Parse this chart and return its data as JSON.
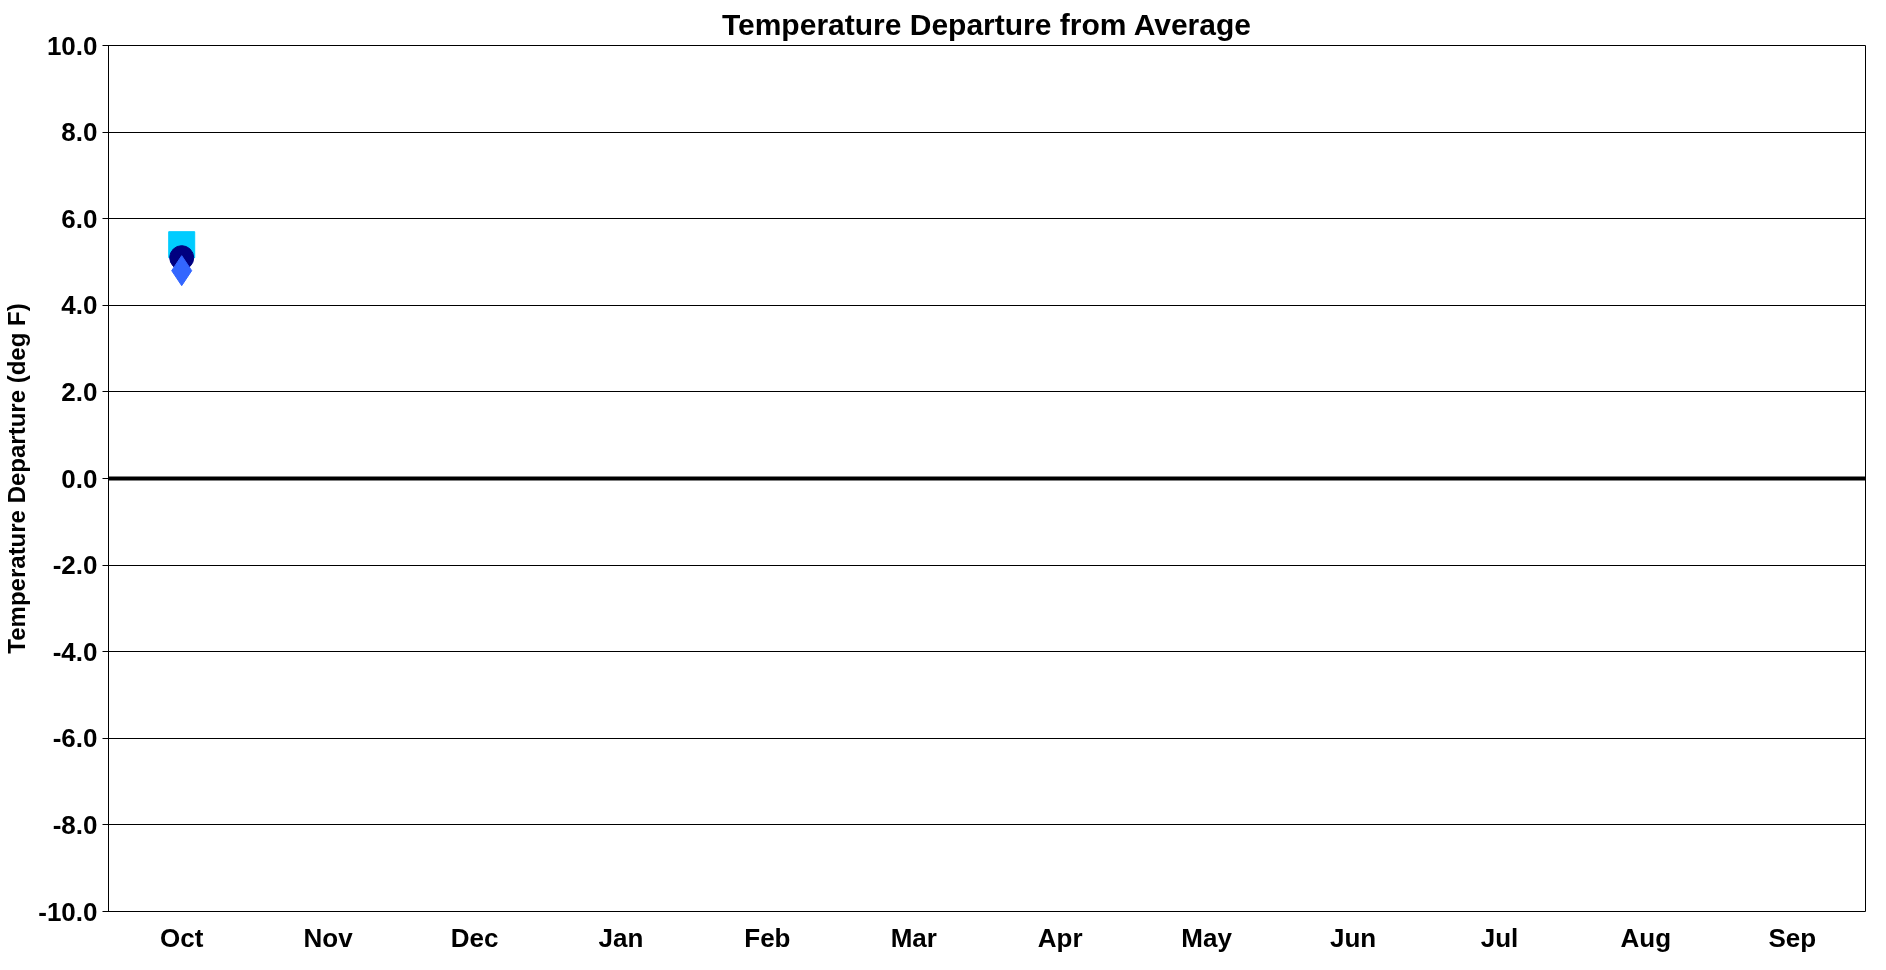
{
  "chart_data": {
    "type": "scatter",
    "title": "Temperature Departure from Average",
    "ylabel": "Temperature Departure (deg F)",
    "categories": [
      "Oct",
      "Nov",
      "Dec",
      "Jan",
      "Feb",
      "Mar",
      "Apr",
      "May",
      "Jun",
      "Jul",
      "Aug",
      "Sep"
    ],
    "series": [
      {
        "color": "#00ccff",
        "marker": "square",
        "values": [
          5.4,
          null,
          null,
          null,
          null,
          null,
          null,
          null,
          null,
          null,
          null,
          null
        ]
      },
      {
        "color": "#000080",
        "marker": "circle",
        "values": [
          5.1,
          null,
          null,
          null,
          null,
          null,
          null,
          null,
          null,
          null,
          null,
          null
        ]
      },
      {
        "color": "#3366ff",
        "marker": "diamond",
        "values": [
          4.8,
          null,
          null,
          null,
          null,
          null,
          null,
          null,
          null,
          null,
          null,
          null
        ]
      }
    ],
    "ylim": [
      -10.0,
      10.0
    ],
    "yticks": [
      {
        "value": -10,
        "label": "-10.0"
      },
      {
        "value": -8,
        "label": "-8.0"
      },
      {
        "value": -6,
        "label": "-6.0"
      },
      {
        "value": -4,
        "label": "-4.0"
      },
      {
        "value": -2,
        "label": "-2.0"
      },
      {
        "value": 0,
        "label": "0.0"
      },
      {
        "value": 2,
        "label": "2.0"
      },
      {
        "value": 4,
        "label": "4.0"
      },
      {
        "value": 6,
        "label": "6.0"
      },
      {
        "value": 8,
        "label": "8.0"
      },
      {
        "value": 10,
        "label": "10.0"
      }
    ],
    "ref_lines": [
      {
        "axis": "y",
        "value": 0,
        "color": "#000000"
      }
    ],
    "grid": "y"
  }
}
